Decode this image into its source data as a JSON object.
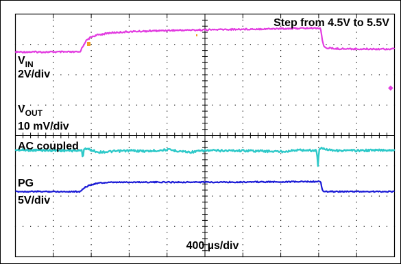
{
  "chart_data": {
    "type": "line",
    "title": "Step from 4.5V to 5.5V",
    "xlabel": "400 µs/div",
    "grid": true,
    "x_divisions": 10,
    "y_divisions": 8,
    "x_range_div": [
      0,
      10
    ],
    "y_range_div": [
      -4,
      4
    ],
    "channels": [
      {
        "name_main": "V",
        "name_sub": "IN",
        "scale": "2V/div",
        "color": "#e23ce0",
        "baseline_div": 2.75,
        "x": [
          0,
          1.7,
          1.85,
          2.0,
          2.2,
          2.5,
          3.0,
          4.0,
          5.0,
          6.0,
          7.0,
          8.05,
          8.1,
          8.15,
          8.4,
          9.0,
          10.0
        ],
        "y": [
          2.75,
          2.75,
          3.1,
          3.25,
          3.32,
          3.38,
          3.42,
          3.46,
          3.48,
          3.5,
          3.52,
          3.54,
          3.1,
          2.9,
          2.86,
          2.85,
          2.85
        ]
      },
      {
        "name_main": "V",
        "name_sub": "OUT",
        "scale": "10 mV/div",
        "note": "AC coupled",
        "color": "#2fc9c9",
        "baseline_div": -0.5,
        "x": [
          0,
          1.5,
          1.75,
          1.78,
          1.81,
          2.2,
          3.0,
          3.5,
          4.0,
          4.6,
          5.0,
          6.0,
          7.0,
          7.5,
          7.95,
          7.98,
          8.01,
          8.5,
          9.0,
          10.0
        ],
        "y": [
          -0.48,
          -0.5,
          -0.5,
          -0.75,
          -0.42,
          -0.55,
          -0.5,
          -0.52,
          -0.47,
          -0.55,
          -0.5,
          -0.5,
          -0.53,
          -0.48,
          -0.5,
          -1.05,
          -0.42,
          -0.5,
          -0.5,
          -0.48
        ]
      },
      {
        "name_main": "PG",
        "name_sub": "",
        "scale": "5V/div",
        "color": "#1a1ad6",
        "baseline_div": -1.85,
        "x": [
          0,
          1.7,
          1.85,
          2.0,
          2.2,
          2.5,
          3.0,
          5.0,
          7.0,
          8.05,
          8.1,
          8.15,
          10.0
        ],
        "y": [
          -1.85,
          -1.85,
          -1.7,
          -1.62,
          -1.57,
          -1.55,
          -1.54,
          -1.54,
          -1.53,
          -1.52,
          -1.82,
          -1.85,
          -1.85
        ]
      }
    ]
  }
}
